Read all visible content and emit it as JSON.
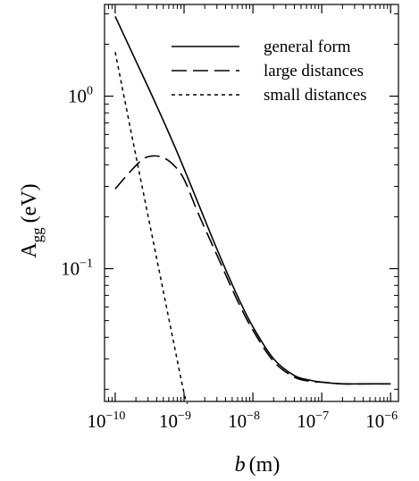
{
  "chart_data": {
    "type": "line",
    "title": "",
    "x_scale": "log",
    "y_scale": "log",
    "xlim": [
      7e-11,
      1.3e-06
    ],
    "ylim": [
      0.017,
      3.4
    ],
    "grid": false,
    "legend_placement": "top-right",
    "xlabel": {
      "symbol": "b",
      "unit": "(m)"
    },
    "ylabel": {
      "base": "A",
      "subscript": "gg",
      "unit": "(eV)"
    },
    "x_ticks": [
      {
        "value": 1e-10,
        "base": "10",
        "exp": "-10"
      },
      {
        "value": 1e-09,
        "base": "10",
        "exp": "-9"
      },
      {
        "value": 1e-08,
        "base": "10",
        "exp": "-8"
      },
      {
        "value": 1e-07,
        "base": "10",
        "exp": "-7"
      },
      {
        "value": 1e-06,
        "base": "10",
        "exp": "-6"
      }
    ],
    "y_ticks": [
      {
        "value": 1.0,
        "base": "10",
        "exp": "0"
      },
      {
        "value": 0.1,
        "base": "10",
        "exp": "-1"
      }
    ],
    "series": [
      {
        "name": "general form",
        "style": "solid",
        "x": [
          1e-10,
          2e-10,
          4e-10,
          8e-10,
          1.6e-09,
          3e-09,
          6e-09,
          1e-08,
          2e-08,
          4e-08,
          7e-08,
          1e-07,
          2e-07,
          5e-07,
          1e-06
        ],
        "y": [
          2.9,
          1.6,
          0.88,
          0.47,
          0.24,
          0.13,
          0.069,
          0.046,
          0.03,
          0.024,
          0.0225,
          0.022,
          0.0215,
          0.0215,
          0.0215
        ]
      },
      {
        "name": "large distances",
        "style": "long-dash",
        "x": [
          1e-10,
          1.6e-10,
          2.5e-10,
          3.5e-10,
          5e-10,
          7e-10,
          1e-09,
          1.6e-09,
          3e-09,
          6e-09,
          1e-08,
          2e-08,
          4e-08,
          7e-08,
          1e-07,
          2e-07,
          5e-07,
          1e-06
        ],
        "y": [
          0.29,
          0.36,
          0.43,
          0.45,
          0.44,
          0.4,
          0.33,
          0.21,
          0.12,
          0.065,
          0.044,
          0.029,
          0.0235,
          0.0222,
          0.022,
          0.0215,
          0.0215,
          0.0215
        ]
      },
      {
        "name": "small distances",
        "style": "short-dash",
        "x": [
          1e-10,
          2e-10,
          4e-10,
          7e-10,
          1e-09,
          1.12e-09
        ],
        "y": [
          1.8,
          0.45,
          0.115,
          0.038,
          0.019,
          0.0165
        ]
      }
    ]
  }
}
